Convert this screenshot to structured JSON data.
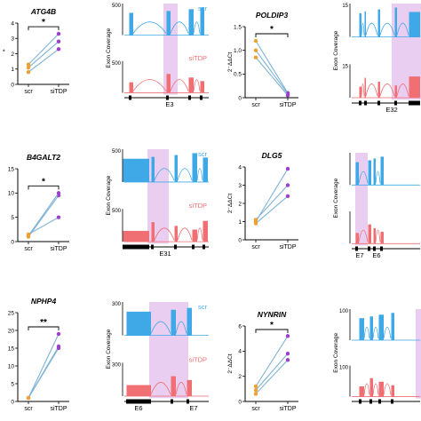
{
  "colors": {
    "scr_line": "#7fb3d5",
    "scr_dot": "#f0a030",
    "sitdp_dot": "#9b40c8",
    "scr_track": "#3fa9e8",
    "sitdp_track": "#ef6f72",
    "highlight": "#e6c6ef",
    "axis": "#000000"
  },
  "chart_data": [
    {
      "type": "line",
      "gene": "ATG4B",
      "categories": [
        "scr",
        "siTDP"
      ],
      "yticks": [
        "0",
        "1",
        "2",
        "3",
        "4"
      ],
      "ylim": [
        0,
        4
      ],
      "ylabel_fragment": "*",
      "significance": "*",
      "series": [
        {
          "values": [
            0.8,
            2.3
          ]
        },
        {
          "values": [
            1.1,
            2.8
          ]
        },
        {
          "values": [
            1.3,
            3.3
          ]
        }
      ]
    },
    {
      "type": "line",
      "gene": "POLDIP3",
      "categories": [
        "scr",
        "siTDP"
      ],
      "yticks": [
        "0",
        "0.5",
        "1.0",
        "1.5"
      ],
      "ylim": [
        0,
        1.5
      ],
      "ylabel": "2⁻ΔΔCt",
      "significance": "*",
      "series": [
        {
          "values": [
            1.2,
            0.1
          ]
        },
        {
          "values": [
            1.0,
            0.08
          ]
        },
        {
          "values": [
            0.85,
            0.05
          ]
        }
      ]
    },
    {
      "type": "line",
      "gene": "B4GALT2",
      "categories": [
        "scr",
        "siTDP"
      ],
      "yticks": [
        "0",
        "5",
        "10",
        "15"
      ],
      "ylim": [
        0,
        15
      ],
      "significance": "*",
      "series": [
        {
          "values": [
            1.0,
            9.5
          ]
        },
        {
          "values": [
            1.2,
            10.0
          ]
        },
        {
          "values": [
            1.5,
            5.0
          ]
        }
      ]
    },
    {
      "type": "line",
      "gene": "DLG5",
      "categories": [
        "scr",
        "siTDP"
      ],
      "yticks": [
        "0",
        "1",
        "2",
        "3",
        "4"
      ],
      "ylim": [
        0,
        4
      ],
      "ylabel": "2⁻ΔΔCt",
      "significance": "",
      "series": [
        {
          "values": [
            1.0,
            3.9
          ]
        },
        {
          "values": [
            1.1,
            3.0
          ]
        },
        {
          "values": [
            0.9,
            2.4
          ]
        }
      ]
    },
    {
      "type": "line",
      "gene": "NPHP4",
      "categories": [
        "scr",
        "siTDP"
      ],
      "yticks": [
        "0",
        "5",
        "10",
        "15",
        "20",
        "25"
      ],
      "ylim": [
        0,
        25
      ],
      "significance": "**",
      "series": [
        {
          "values": [
            1.0,
            19.0
          ]
        },
        {
          "values": [
            1.0,
            15.5
          ]
        },
        {
          "values": [
            1.0,
            15.0
          ]
        }
      ]
    },
    {
      "type": "line",
      "gene": "NYNRIN",
      "categories": [
        "scr",
        "siTDP"
      ],
      "yticks": [
        "0",
        "2",
        "4",
        "6"
      ],
      "ylim": [
        0,
        6
      ],
      "ylabel": "2⁻ΔΔCt",
      "significance": "*",
      "series": [
        {
          "values": [
            1.2,
            5.2
          ]
        },
        {
          "values": [
            0.9,
            3.8
          ]
        },
        {
          "values": [
            0.6,
            3.3
          ]
        }
      ]
    }
  ],
  "coverage_panels": [
    {
      "ylabel": "Exon Coverage",
      "top_tick": "500",
      "bottom_tick": "500",
      "scr_label": "scr",
      "sitdp_label": "siTDP",
      "exon_labels": [
        "E3"
      ]
    },
    {
      "ylabel": "Exon Coverage",
      "top_tick": "15",
      "bottom_tick": "15",
      "exon_labels": [
        "E32"
      ]
    },
    {
      "ylabel": "Exon Coverage",
      "top_tick": "500",
      "bottom_tick": "500",
      "scr_label": "scr",
      "sitdp_label": "siTDP",
      "exon_labels": [
        "E31"
      ]
    },
    {
      "ylabel": "Exon Coverage",
      "top_tick": "",
      "bottom_tick": "",
      "exon_labels": [
        "E7",
        "E6"
      ]
    },
    {
      "ylabel": "Exon Coverage",
      "top_tick": "300",
      "bottom_tick": "300",
      "scr_label": "scr",
      "sitdp_label": "siTDP",
      "exon_labels": [
        "E6",
        "E7"
      ]
    },
    {
      "ylabel": "Exon Coverage",
      "top_tick": "100",
      "bottom_tick": "100",
      "exon_labels": []
    }
  ]
}
